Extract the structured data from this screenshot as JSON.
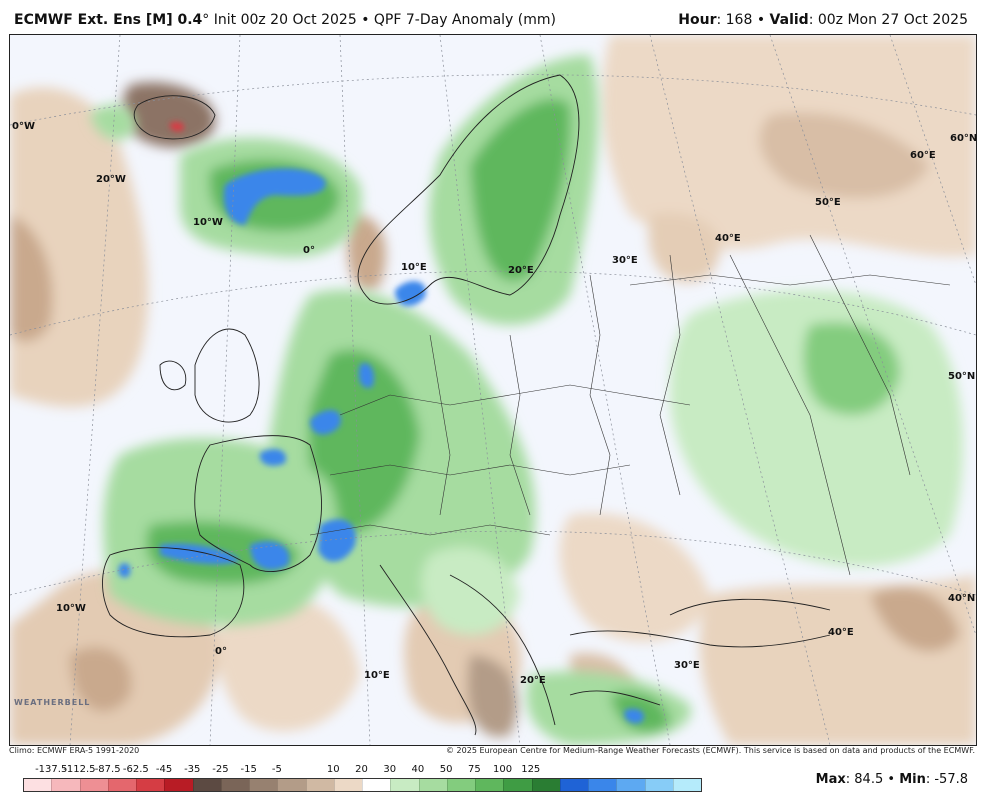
{
  "header": {
    "model": "ECMWF Ext. Ens [M] 0.4",
    "degree": "°",
    "init": "Init 00z 20 Oct 2025",
    "bullet": "•",
    "product": "QPF 7-Day Anomaly (mm)",
    "hour_label": "Hour",
    "hour_value": ": 168",
    "valid_label": "Valid",
    "valid_value": ": 00z Mon 27 Oct 2025"
  },
  "map_labels": {
    "lon_0_top": "0°W",
    "lon_20w": "20°W",
    "lon_10w_top": "10°W",
    "lon_0": "0°",
    "lon_10e": "10°E",
    "lon_20e": "20°E",
    "lon_30e": "30°E",
    "lon_40e": "40°E",
    "lon_50e": "50°E",
    "lon_60e": "60°E",
    "lat_60n": "60°N",
    "lat_50n": "50°N",
    "lat_40n": "40°N",
    "lon_10w_bottom": "10°W",
    "lon_0_bottom": "0°",
    "lon_10e_bottom": "10°E",
    "lon_20e_bottom": "20°E",
    "lon_30e_bottom": "30°E",
    "lon_40e_bottom": "40°E"
  },
  "logo_text": "WEATHERBELL",
  "credits": {
    "climo": "Climo: ECMWF ERA-5 1991-2020",
    "copyright": "© 2025 European Centre for Medium-Range Weather Forecasts (ECMWF). This service is based on data and products of the ECMWF."
  },
  "colorbar": {
    "tick_labels": [
      "-137.5",
      "-112.5",
      "-87.5",
      "-62.5",
      "-45",
      "-35",
      "-25",
      "-15",
      "-5",
      "10",
      "20",
      "30",
      "40",
      "50",
      "75",
      "100",
      "125"
    ],
    "colors": [
      "#fde0e2",
      "#f6b8bc",
      "#ee8f94",
      "#e4676d",
      "#d53d44",
      "#b81c25",
      "#5c4a42",
      "#7a6558",
      "#978170",
      "#b39c88",
      "#d0b9a3",
      "#ecd9c6",
      "#ffffff",
      "#c8ebc3",
      "#a6dca0",
      "#83cc7e",
      "#5fb75d",
      "#3f9c44",
      "#2a7d33",
      "#1f63d6",
      "#3a86ea",
      "#5da9f2",
      "#87ccf7",
      "#b5ebfb"
    ]
  },
  "stats": {
    "max_label": "Max",
    "max_value": ": 84.5",
    "bullet": "•",
    "min_label": "Min",
    "min_value": ": -57.8"
  }
}
